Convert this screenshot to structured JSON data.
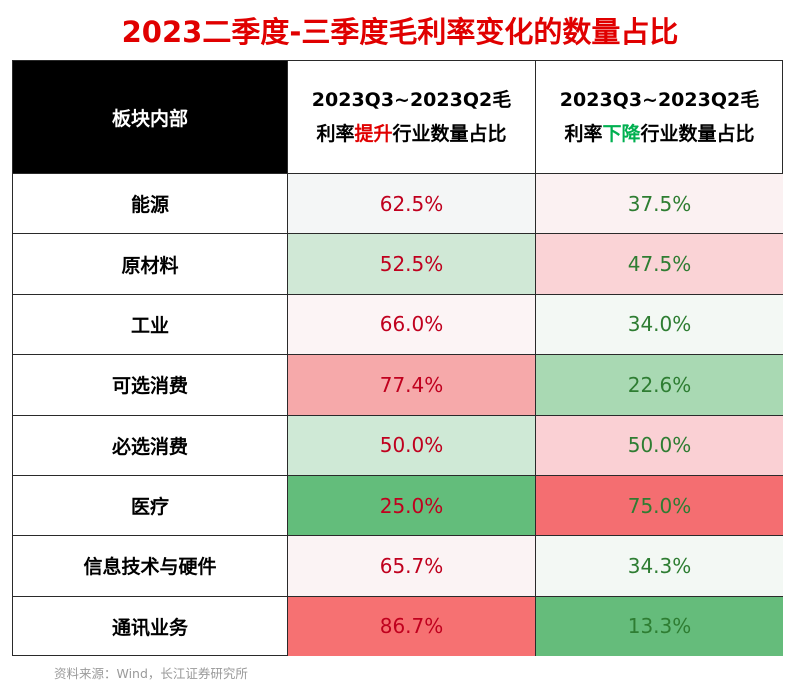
{
  "title": "2023二季度-三季度毛利率变化的数量占比",
  "table": {
    "corner_label": "板块内部",
    "columns": [
      {
        "line1": "2023Q3~2023Q2毛",
        "line2_prefix": "利率",
        "emphasis": "提升",
        "emphasis_color": "#e00000",
        "line2_suffix": "行业数量占比"
      },
      {
        "line1": "2023Q3~2023Q2毛",
        "line2_prefix": "利率",
        "emphasis": "下降",
        "emphasis_color": "#00b050",
        "line2_suffix": "行业数量占比"
      }
    ],
    "rows": [
      {
        "label": "能源",
        "up": "62.5%",
        "down": "37.5%",
        "up_bg": "#f4f6f6",
        "down_bg": "#fbf1f2"
      },
      {
        "label": "原材料",
        "up": "52.5%",
        "down": "47.5%",
        "up_bg": "#d0e8d6",
        "down_bg": "#fad3d6"
      },
      {
        "label": "工业",
        "up": "66.0%",
        "down": "34.0%",
        "up_bg": "#fcf4f5",
        "down_bg": "#f3f8f4"
      },
      {
        "label": "可选消费",
        "up": "77.4%",
        "down": "22.6%",
        "up_bg": "#f6a9aa",
        "down_bg": "#a9d9b3"
      },
      {
        "label": "必选消费",
        "up": "50.0%",
        "down": "50.0%",
        "up_bg": "#cfe9d6",
        "down_bg": "#fad0d4"
      },
      {
        "label": "医疗",
        "up": "25.0%",
        "down": "75.0%",
        "up_bg": "#63bd7b",
        "down_bg": "#f46e71"
      },
      {
        "label": "信息技术与硬件",
        "up": "65.7%",
        "down": "34.3%",
        "up_bg": "#fbf3f4",
        "down_bg": "#f3f8f4"
      },
      {
        "label": "通讯业务",
        "up": "86.7%",
        "down": "13.3%",
        "up_bg": "#f67172",
        "down_bg": "#65bc7b"
      }
    ]
  },
  "colors": {
    "up_text": "#c0001e",
    "down_text": "#2e7d32",
    "title": "#e00000"
  },
  "footer": "资料来源：Wind，长江证券研究所"
}
